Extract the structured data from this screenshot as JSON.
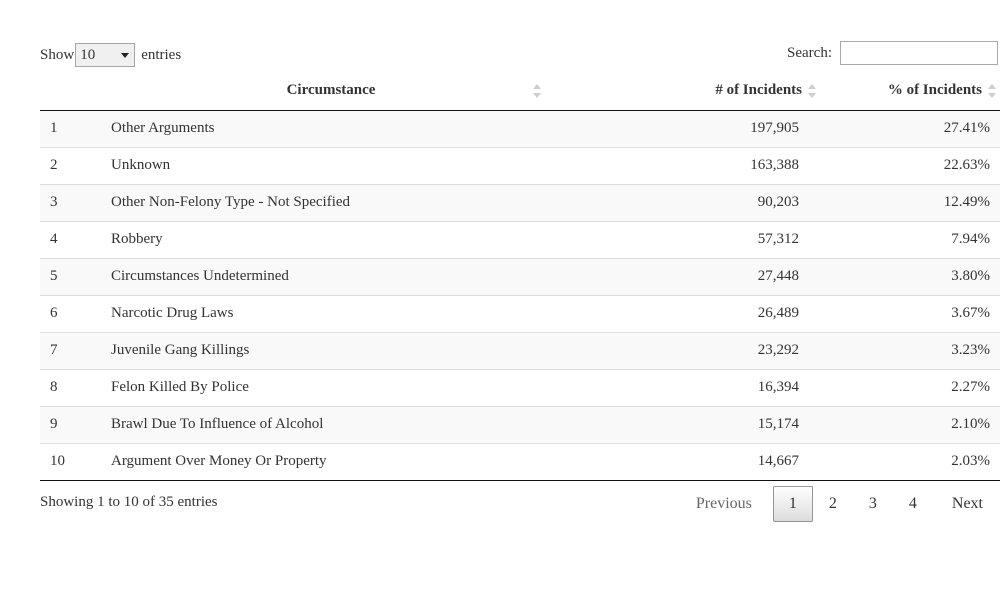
{
  "length_control": {
    "show_label": "Show",
    "selected": "10",
    "entries_label": "entries"
  },
  "search": {
    "label": "Search:",
    "value": ""
  },
  "columns": {
    "index": "",
    "circumstance": "Circumstance",
    "incidents": "# of Incidents",
    "percent": "% of Incidents"
  },
  "rows": [
    {
      "idx": "1",
      "circumstance": "Other Arguments",
      "incidents": "197,905",
      "percent": "27.41%"
    },
    {
      "idx": "2",
      "circumstance": "Unknown",
      "incidents": "163,388",
      "percent": "22.63%"
    },
    {
      "idx": "3",
      "circumstance": "Other Non-Felony Type - Not Specified",
      "incidents": "90,203",
      "percent": "12.49%"
    },
    {
      "idx": "4",
      "circumstance": "Robbery",
      "incidents": "57,312",
      "percent": "7.94%"
    },
    {
      "idx": "5",
      "circumstance": "Circumstances Undetermined",
      "incidents": "27,448",
      "percent": "3.80%"
    },
    {
      "idx": "6",
      "circumstance": "Narcotic Drug Laws",
      "incidents": "26,489",
      "percent": "3.67%"
    },
    {
      "idx": "7",
      "circumstance": "Juvenile Gang Killings",
      "incidents": "23,292",
      "percent": "3.23%"
    },
    {
      "idx": "8",
      "circumstance": "Felon Killed By Police",
      "incidents": "16,394",
      "percent": "2.27%"
    },
    {
      "idx": "9",
      "circumstance": "Brawl Due To Influence of Alcohol",
      "incidents": "15,174",
      "percent": "2.10%"
    },
    {
      "idx": "10",
      "circumstance": "Argument Over Money Or Property",
      "incidents": "14,667",
      "percent": "2.03%"
    }
  ],
  "info": "Showing 1 to 10 of 35 entries",
  "pagination": {
    "previous": "Previous",
    "pages": [
      "1",
      "2",
      "3",
      "4"
    ],
    "current": "1",
    "next": "Next"
  }
}
